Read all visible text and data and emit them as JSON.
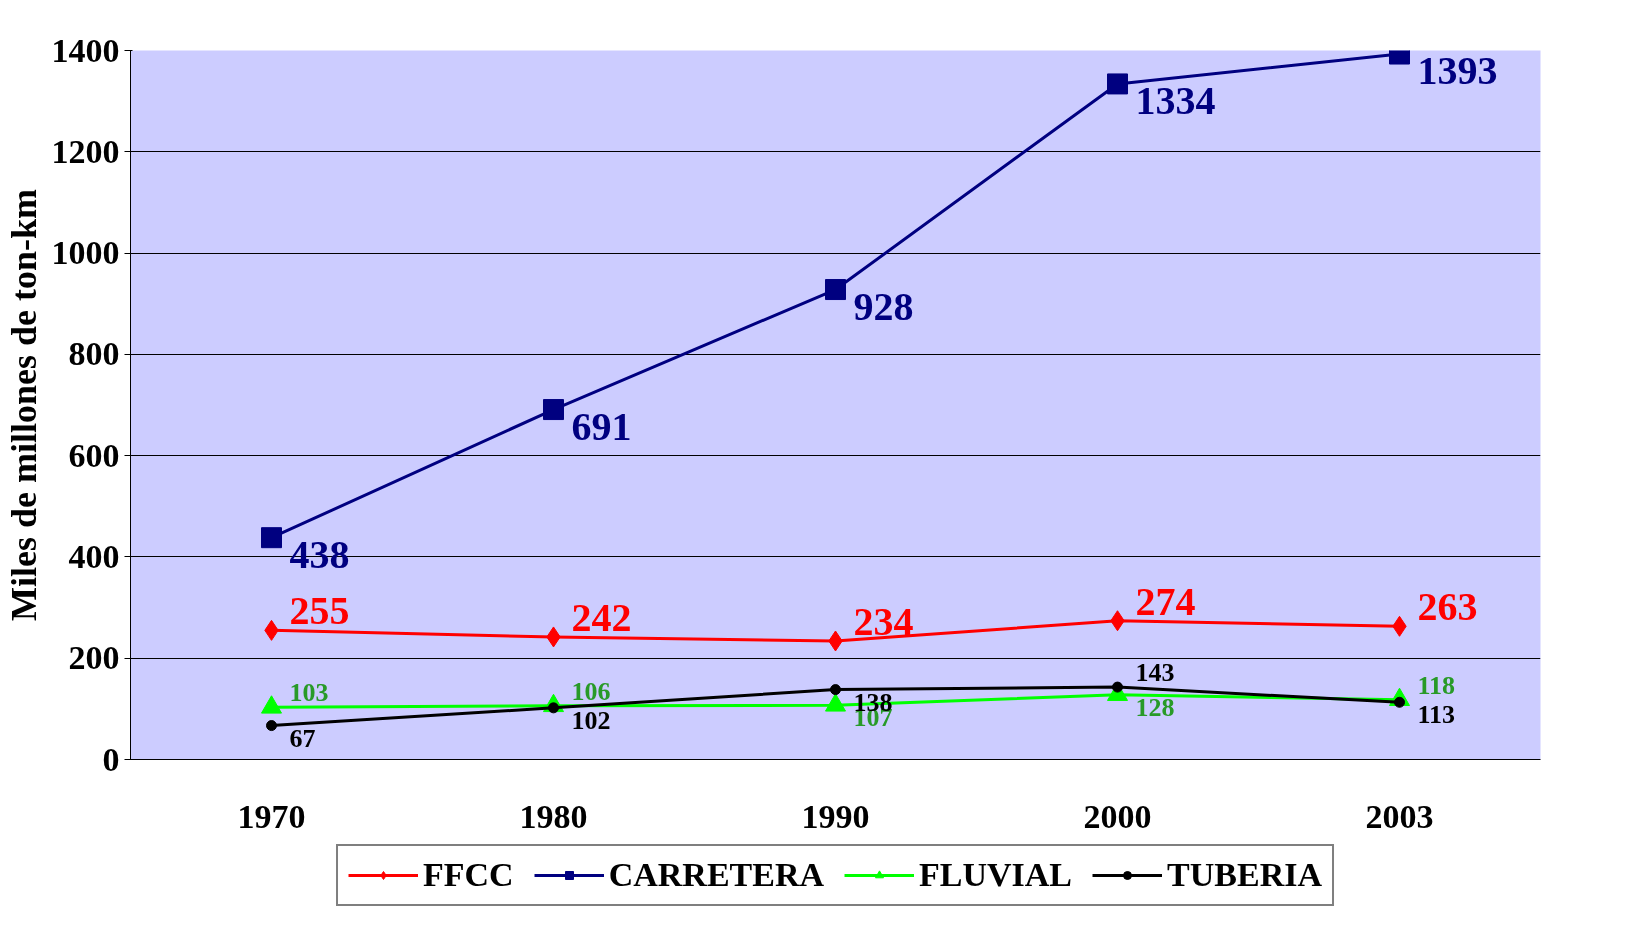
{
  "chart_data": {
    "type": "line",
    "ylabel": "Miles de millones de ton-km",
    "categories": [
      "1970",
      "1980",
      "1990",
      "2000",
      "2003"
    ],
    "series": [
      {
        "name": "FFCC",
        "color": "#ff0000",
        "values": [
          255,
          242,
          234,
          274,
          263
        ],
        "marker": "diamond"
      },
      {
        "name": "CARRETERA",
        "color": "#000080",
        "values": [
          438,
          691,
          928,
          1334,
          1393
        ],
        "marker": "square"
      },
      {
        "name": "FLUVIAL",
        "color": "#00ff00",
        "values": [
          103,
          106,
          107,
          128,
          118
        ],
        "marker": "triangle"
      },
      {
        "name": "TUBERIA",
        "color": "#000000",
        "values": [
          67,
          102,
          138,
          143,
          113
        ],
        "marker": "circle"
      }
    ],
    "ylim": [
      0,
      1400
    ],
    "yticks": [
      0,
      200,
      400,
      600,
      800,
      1000,
      1200,
      1400
    ],
    "grid": "y",
    "legend": "bottom",
    "data_labels": true
  }
}
